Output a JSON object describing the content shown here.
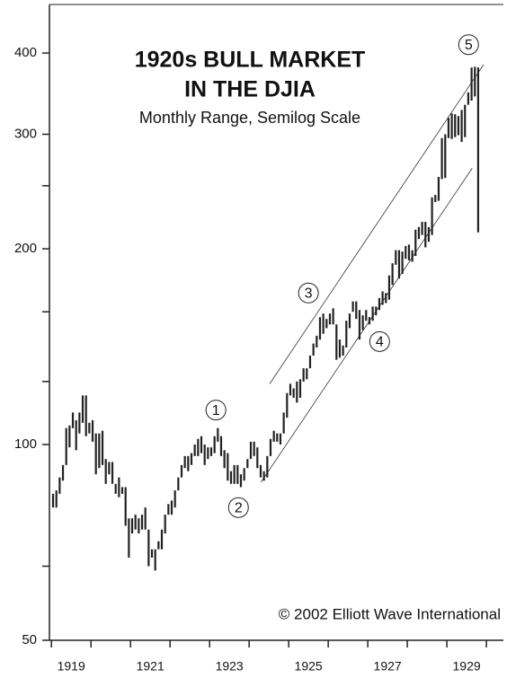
{
  "chart_data": {
    "type": "range_bar",
    "title": [
      "1920s BULL MARKET",
      "IN THE DJIA"
    ],
    "subtitle": "Monthly Range, Semilog Scale",
    "credit": "© 2002 Elliott Wave International",
    "log_y": true,
    "color": "#222222",
    "xlim": [
      1918.95,
      1930.43
    ],
    "ylim": [
      50,
      475
    ],
    "yticks": [
      50,
      100,
      200,
      300,
      400
    ],
    "minor_yticks": [
      65,
      125,
      160,
      250
    ],
    "xticks": [
      1919,
      1920,
      1921,
      1922,
      1923,
      1924,
      1925,
      1926,
      1927,
      1928,
      1929,
      1930
    ],
    "xlabels": [
      {
        "value": 1919.5,
        "label": "1919"
      },
      {
        "value": 1921.5,
        "label": "1921"
      },
      {
        "value": 1923.5,
        "label": "1923"
      },
      {
        "value": 1925.5,
        "label": "1925"
      },
      {
        "value": 1927.5,
        "label": "1927"
      },
      {
        "value": 1929.5,
        "label": "1929"
      }
    ],
    "x": [
      "1919-01",
      "1919-02",
      "1919-03",
      "1919-04",
      "1919-05",
      "1919-06",
      "1919-07",
      "1919-08",
      "1919-09",
      "1919-10",
      "1919-11",
      "1919-12",
      "1920-01",
      "1920-02",
      "1920-03",
      "1920-04",
      "1920-05",
      "1920-06",
      "1920-07",
      "1920-08",
      "1920-09",
      "1920-10",
      "1920-11",
      "1920-12",
      "1921-01",
      "1921-02",
      "1921-03",
      "1921-04",
      "1921-05",
      "1921-06",
      "1921-07",
      "1921-08",
      "1921-09",
      "1921-10",
      "1921-11",
      "1921-12",
      "1922-01",
      "1922-02",
      "1922-03",
      "1922-04",
      "1922-05",
      "1922-06",
      "1922-07",
      "1922-08",
      "1922-09",
      "1922-10",
      "1922-11",
      "1922-12",
      "1923-01",
      "1923-02",
      "1923-03",
      "1923-04",
      "1923-05",
      "1923-06",
      "1923-07",
      "1923-08",
      "1923-09",
      "1923-10",
      "1923-11",
      "1923-12",
      "1924-01",
      "1924-02",
      "1924-03",
      "1924-04",
      "1924-05",
      "1924-06",
      "1924-07",
      "1924-08",
      "1924-09",
      "1924-10",
      "1924-11",
      "1924-12",
      "1925-01",
      "1925-02",
      "1925-03",
      "1925-04",
      "1925-05",
      "1925-06",
      "1925-07",
      "1925-08",
      "1925-09",
      "1925-10",
      "1925-11",
      "1925-12",
      "1926-01",
      "1926-02",
      "1926-03",
      "1926-04",
      "1926-05",
      "1926-06",
      "1926-07",
      "1926-08",
      "1926-09",
      "1926-10",
      "1926-11",
      "1926-12",
      "1927-01",
      "1927-02",
      "1927-03",
      "1927-04",
      "1927-05",
      "1927-06",
      "1927-07",
      "1927-08",
      "1927-09",
      "1927-10",
      "1927-11",
      "1927-12",
      "1928-01",
      "1928-02",
      "1928-03",
      "1928-04",
      "1928-05",
      "1928-06",
      "1928-07",
      "1928-08",
      "1928-09",
      "1928-10",
      "1928-11",
      "1928-12",
      "1929-01",
      "1929-02",
      "1929-03",
      "1929-04",
      "1929-05",
      "1929-06",
      "1929-07",
      "1929-08",
      "1929-09",
      "1929-10"
    ],
    "low": [
      80,
      80,
      84,
      88,
      93,
      99,
      106,
      98,
      104,
      108,
      103,
      104,
      101,
      90,
      92,
      93,
      87,
      90,
      87,
      84,
      83,
      84,
      75,
      67,
      73,
      74,
      73,
      74,
      74,
      65,
      67,
      64,
      69,
      69,
      73,
      78,
      78,
      80,
      85,
      89,
      92,
      91,
      93,
      96,
      96,
      97,
      93,
      95,
      96,
      97,
      101,
      96,
      92,
      88,
      87,
      87,
      87,
      86,
      88,
      92,
      95,
      96,
      92,
      89,
      88,
      89,
      96,
      101,
      101,
      100,
      104,
      110,
      119,
      118,
      116,
      118,
      125,
      126,
      131,
      137,
      141,
      145,
      148,
      151,
      153,
      153,
      135,
      136,
      137,
      141,
      151,
      160,
      156,
      145,
      150,
      155,
      153,
      155,
      158,
      161,
      164,
      165,
      167,
      176,
      189,
      180,
      183,
      193,
      192,
      191,
      195,
      207,
      210,
      201,
      205,
      210,
      236,
      237,
      256,
      257,
      296,
      295,
      297,
      299,
      292,
      297,
      333,
      338,
      343,
      212
    ],
    "high": [
      84,
      85,
      89,
      93,
      106,
      107,
      112,
      109,
      112,
      119,
      119,
      108,
      109,
      104,
      104,
      105,
      95,
      94,
      94,
      87,
      89,
      86,
      86,
      77,
      77,
      78,
      77,
      78,
      80,
      74,
      69,
      69,
      71,
      74,
      78,
      81,
      82,
      85,
      89,
      93,
      96,
      96,
      97,
      100,
      102,
      103,
      100,
      99,
      99,
      103,
      106,
      103,
      98,
      97,
      91,
      93,
      93,
      90,
      92,
      95,
      101,
      101,
      99,
      93,
      91,
      96,
      102,
      105,
      104,
      104,
      112,
      120,
      124,
      122,
      125,
      126,
      131,
      131,
      137,
      143,
      147,
      157,
      159,
      156,
      159,
      162,
      153,
      145,
      142,
      155,
      159,
      166,
      166,
      161,
      158,
      161,
      157,
      163,
      163,
      168,
      172,
      171,
      182,
      190,
      199,
      199,
      198,
      202,
      203,
      199,
      214,
      216,
      220,
      220,
      216,
      240,
      242,
      258,
      296,
      300,
      318,
      323,
      322,
      320,
      327,
      333,
      348,
      380,
      381,
      380
    ],
    "trendlines": [
      {
        "x": [
          1924.52,
          1929.93
        ],
        "y": [
          124,
          384
        ]
      },
      {
        "x": [
          1924.3,
          1929.64
        ],
        "y": [
          87.5,
          266
        ]
      }
    ],
    "annotations": [
      {
        "text": "1",
        "x": 1923.16,
        "y": 113
      },
      {
        "text": "2",
        "x": 1923.73,
        "y": 80
      },
      {
        "text": "3",
        "x": 1925.5,
        "y": 171
      },
      {
        "text": "4",
        "x": 1927.3,
        "y": 144
      },
      {
        "text": "5",
        "x": 1929.55,
        "y": 412
      }
    ]
  }
}
